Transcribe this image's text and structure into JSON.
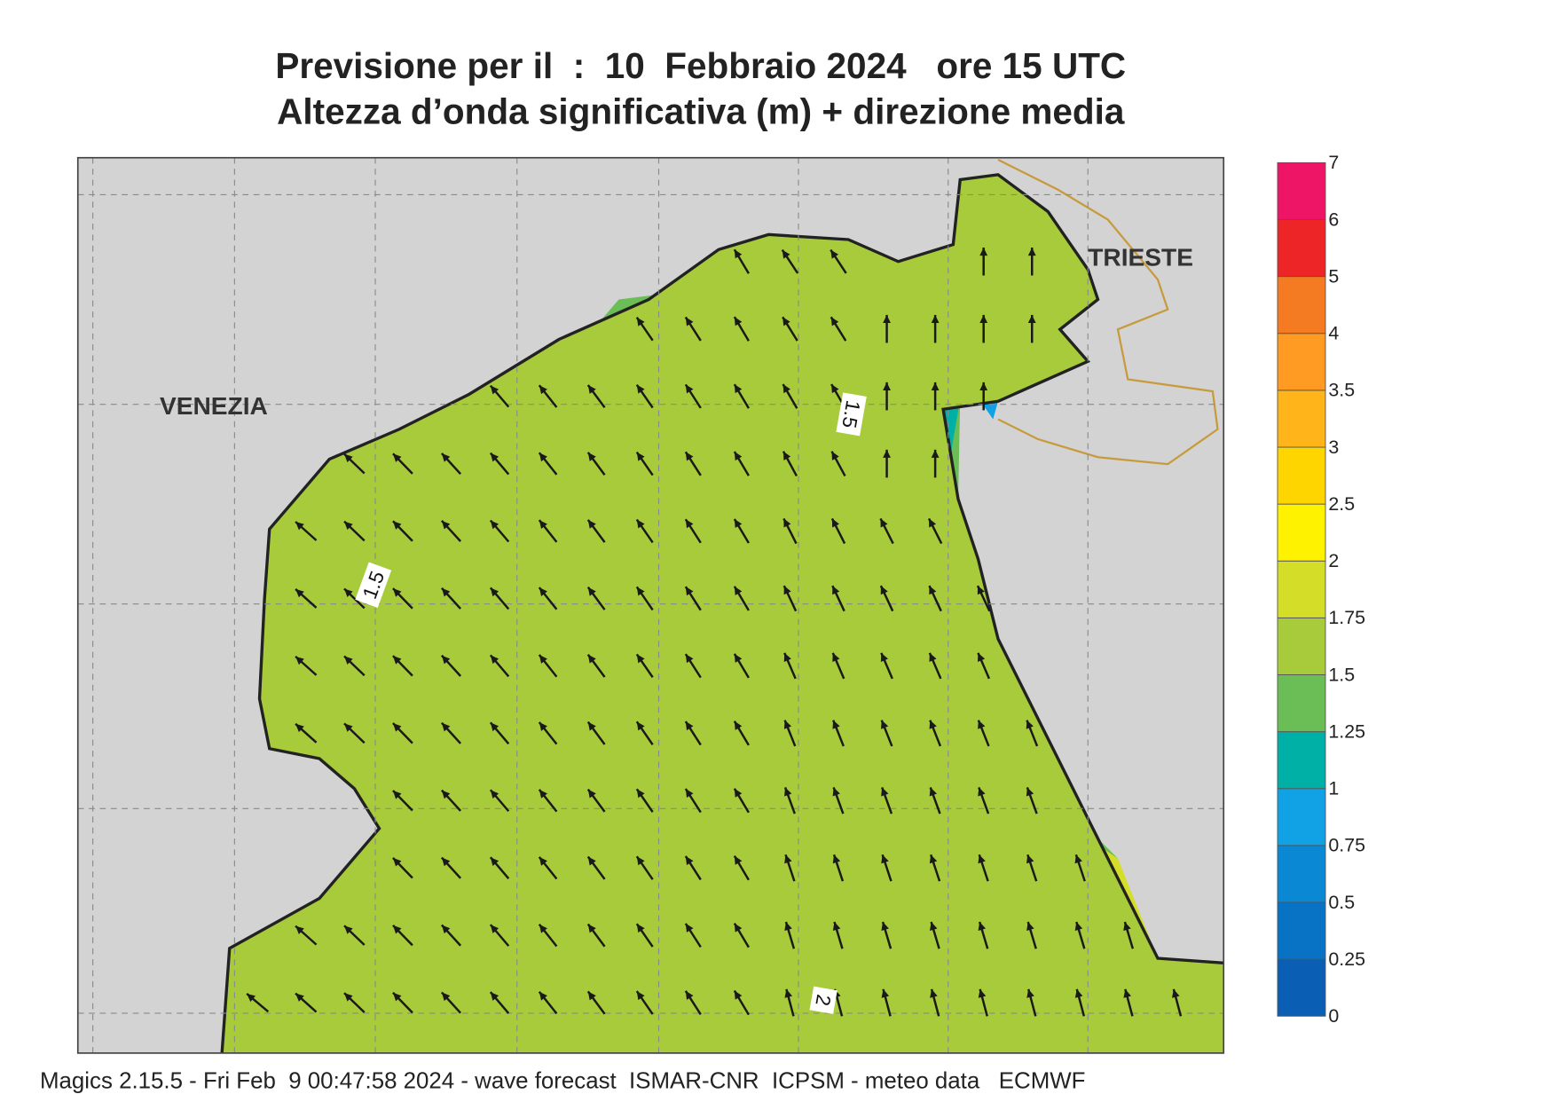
{
  "title": [
    "Previsione per il  :  10  Febbraio 2024   ore 15 UTC",
    "Altezza d’onda significativa (m) + direzione media"
  ],
  "places": [
    "VENEZIA",
    "TRIESTE"
  ],
  "contour_labels": [
    "1.5",
    "1.5",
    "2"
  ],
  "colorbar": {
    "levels": [
      0,
      0.25,
      0.5,
      0.75,
      1,
      1.25,
      1.5,
      1.75,
      2,
      2.5,
      3,
      3.5,
      4,
      5,
      6,
      7
    ],
    "colors": [
      "#0a5fb4",
      "#0872c4",
      "#0a88d4",
      "#10a2e4",
      "#00b0a6",
      "#6bbd55",
      "#a8cb3b",
      "#d4de28",
      "#fff200",
      "#ffd500",
      "#ffb41a",
      "#ff9a22",
      "#f47b22",
      "#ed2526",
      "#ee1567"
    ]
  },
  "footer": "Magics 2.15.5 - Fri Feb  9 00:47:58 2024 - wave forecast  ISMAR-CNR  ICPSM - meteo data   ECMWF"
}
